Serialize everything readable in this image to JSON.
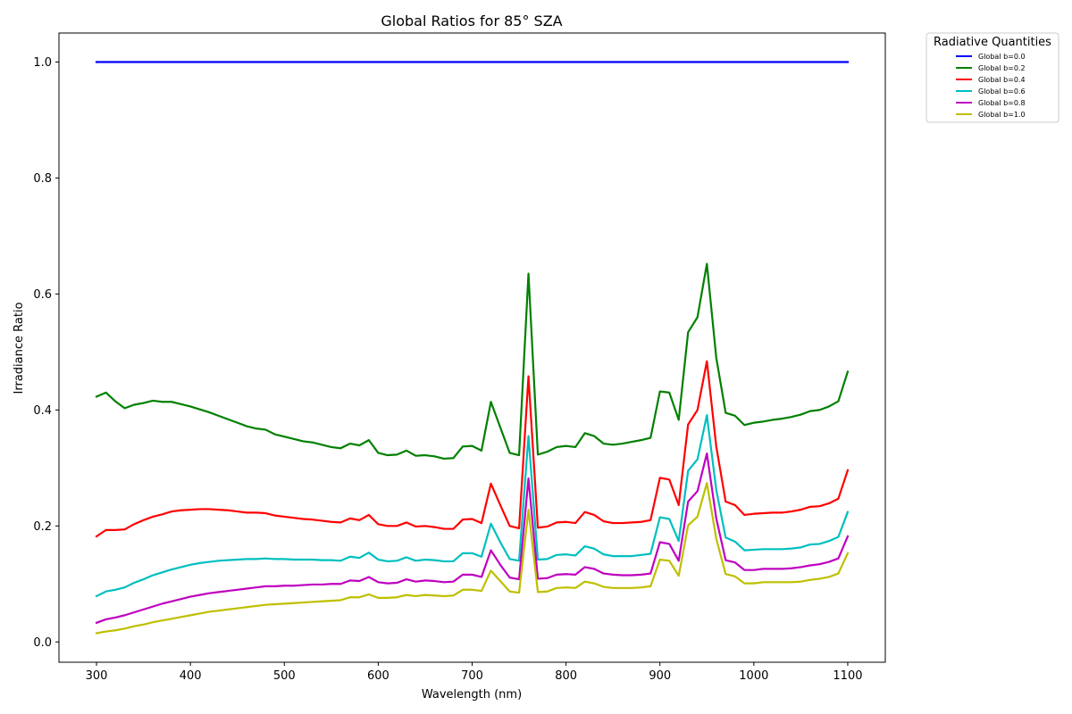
{
  "chart_data": {
    "type": "line",
    "title": "Global Ratios for 85° SZA",
    "xlabel": "Wavelength (nm)",
    "ylabel": "Irradiance Ratio",
    "xlim": [
      260,
      1140
    ],
    "ylim": [
      -0.035,
      1.05
    ],
    "xticks": [
      300,
      400,
      500,
      600,
      700,
      800,
      900,
      1000,
      1100
    ],
    "yticks": [
      0.0,
      0.2,
      0.4,
      0.6,
      0.8,
      1.0
    ],
    "grid": false,
    "legend": {
      "title": "Radiative Quantities",
      "placement": "outside-top-right"
    },
    "x": [
      300,
      310,
      320,
      330,
      340,
      350,
      360,
      370,
      380,
      390,
      400,
      410,
      420,
      430,
      440,
      450,
      460,
      470,
      480,
      490,
      500,
      510,
      520,
      530,
      540,
      550,
      560,
      570,
      580,
      590,
      600,
      610,
      620,
      630,
      640,
      650,
      660,
      670,
      680,
      690,
      700,
      710,
      720,
      730,
      740,
      750,
      760,
      770,
      780,
      790,
      800,
      810,
      820,
      830,
      840,
      850,
      860,
      870,
      880,
      890,
      900,
      910,
      920,
      930,
      940,
      950,
      960,
      970,
      980,
      990,
      1000,
      1010,
      1020,
      1030,
      1040,
      1050,
      1060,
      1070,
      1080,
      1090,
      1100
    ],
    "series": [
      {
        "name": "Global b=0.0",
        "color": "#0000ff",
        "values": [
          1.0,
          1.0,
          1.0,
          1.0,
          1.0,
          1.0,
          1.0,
          1.0,
          1.0,
          1.0,
          1.0,
          1.0,
          1.0,
          1.0,
          1.0,
          1.0,
          1.0,
          1.0,
          1.0,
          1.0,
          1.0,
          1.0,
          1.0,
          1.0,
          1.0,
          1.0,
          1.0,
          1.0,
          1.0,
          1.0,
          1.0,
          1.0,
          1.0,
          1.0,
          1.0,
          1.0,
          1.0,
          1.0,
          1.0,
          1.0,
          1.0,
          1.0,
          1.0,
          1.0,
          1.0,
          1.0,
          1.0,
          1.0,
          1.0,
          1.0,
          1.0,
          1.0,
          1.0,
          1.0,
          1.0,
          1.0,
          1.0,
          1.0,
          1.0,
          1.0,
          1.0,
          1.0,
          1.0,
          1.0,
          1.0,
          1.0,
          1.0,
          1.0,
          1.0,
          1.0,
          1.0,
          1.0,
          1.0,
          1.0,
          1.0,
          1.0,
          1.0,
          1.0,
          1.0,
          1.0,
          1.0
        ]
      },
      {
        "name": "Global b=0.2",
        "color": "#008000",
        "values": [
          0.423,
          0.43,
          0.415,
          0.403,
          0.409,
          0.412,
          0.416,
          0.414,
          0.414,
          0.41,
          0.406,
          0.401,
          0.396,
          0.39,
          0.384,
          0.378,
          0.372,
          0.368,
          0.366,
          0.358,
          0.354,
          0.35,
          0.346,
          0.344,
          0.34,
          0.336,
          0.334,
          0.342,
          0.339,
          0.348,
          0.326,
          0.322,
          0.323,
          0.33,
          0.321,
          0.322,
          0.32,
          0.316,
          0.317,
          0.337,
          0.338,
          0.33,
          0.414,
          0.37,
          0.326,
          0.322,
          0.635,
          0.323,
          0.328,
          0.336,
          0.338,
          0.336,
          0.36,
          0.355,
          0.342,
          0.34,
          0.342,
          0.345,
          0.348,
          0.352,
          0.432,
          0.43,
          0.383,
          0.534,
          0.56,
          0.652,
          0.49,
          0.395,
          0.39,
          0.374,
          0.378,
          0.38,
          0.383,
          0.385,
          0.388,
          0.392,
          0.398,
          0.4,
          0.406,
          0.415,
          0.466
        ]
      },
      {
        "name": "Global b=0.4",
        "color": "#ff0000",
        "values": [
          0.182,
          0.193,
          0.193,
          0.194,
          0.203,
          0.21,
          0.216,
          0.22,
          0.225,
          0.227,
          0.228,
          0.229,
          0.229,
          0.228,
          0.227,
          0.225,
          0.223,
          0.223,
          0.222,
          0.218,
          0.216,
          0.214,
          0.212,
          0.211,
          0.209,
          0.207,
          0.206,
          0.213,
          0.21,
          0.219,
          0.203,
          0.2,
          0.2,
          0.206,
          0.199,
          0.2,
          0.198,
          0.195,
          0.195,
          0.211,
          0.212,
          0.205,
          0.273,
          0.236,
          0.2,
          0.196,
          0.458,
          0.197,
          0.199,
          0.206,
          0.207,
          0.205,
          0.224,
          0.219,
          0.208,
          0.205,
          0.205,
          0.206,
          0.207,
          0.21,
          0.283,
          0.28,
          0.236,
          0.375,
          0.4,
          0.484,
          0.337,
          0.242,
          0.236,
          0.219,
          0.221,
          0.222,
          0.223,
          0.223,
          0.225,
          0.228,
          0.233,
          0.234,
          0.239,
          0.247,
          0.296
        ]
      },
      {
        "name": "Global b=0.6",
        "color": "#00bfbf",
        "values": [
          0.079,
          0.087,
          0.09,
          0.094,
          0.102,
          0.108,
          0.115,
          0.12,
          0.125,
          0.129,
          0.133,
          0.136,
          0.138,
          0.14,
          0.141,
          0.142,
          0.143,
          0.143,
          0.144,
          0.143,
          0.143,
          0.142,
          0.142,
          0.142,
          0.141,
          0.141,
          0.14,
          0.147,
          0.145,
          0.154,
          0.142,
          0.139,
          0.14,
          0.146,
          0.14,
          0.142,
          0.141,
          0.139,
          0.139,
          0.153,
          0.153,
          0.147,
          0.204,
          0.172,
          0.143,
          0.14,
          0.355,
          0.142,
          0.143,
          0.15,
          0.151,
          0.149,
          0.165,
          0.161,
          0.151,
          0.148,
          0.148,
          0.148,
          0.15,
          0.152,
          0.215,
          0.212,
          0.174,
          0.295,
          0.315,
          0.391,
          0.262,
          0.18,
          0.173,
          0.158,
          0.159,
          0.16,
          0.16,
          0.16,
          0.161,
          0.163,
          0.168,
          0.169,
          0.174,
          0.181,
          0.224
        ]
      },
      {
        "name": "Global b=0.8",
        "color": "#bf00bf",
        "values": [
          0.033,
          0.039,
          0.042,
          0.046,
          0.051,
          0.056,
          0.061,
          0.066,
          0.07,
          0.074,
          0.078,
          0.081,
          0.084,
          0.086,
          0.088,
          0.09,
          0.092,
          0.094,
          0.096,
          0.096,
          0.097,
          0.097,
          0.098,
          0.099,
          0.099,
          0.1,
          0.1,
          0.106,
          0.105,
          0.112,
          0.103,
          0.101,
          0.102,
          0.108,
          0.104,
          0.106,
          0.105,
          0.103,
          0.104,
          0.116,
          0.116,
          0.112,
          0.158,
          0.133,
          0.111,
          0.108,
          0.282,
          0.109,
          0.11,
          0.116,
          0.117,
          0.116,
          0.129,
          0.126,
          0.118,
          0.116,
          0.115,
          0.115,
          0.116,
          0.118,
          0.172,
          0.169,
          0.14,
          0.242,
          0.26,
          0.325,
          0.213,
          0.141,
          0.137,
          0.124,
          0.124,
          0.126,
          0.126,
          0.126,
          0.127,
          0.129,
          0.132,
          0.134,
          0.138,
          0.144,
          0.182
        ]
      },
      {
        "name": "Global b=1.0",
        "color": "#bfbf00",
        "values": [
          0.015,
          0.018,
          0.02,
          0.023,
          0.027,
          0.03,
          0.034,
          0.037,
          0.04,
          0.043,
          0.046,
          0.049,
          0.052,
          0.054,
          0.056,
          0.058,
          0.06,
          0.062,
          0.064,
          0.065,
          0.066,
          0.067,
          0.068,
          0.069,
          0.07,
          0.071,
          0.072,
          0.077,
          0.077,
          0.082,
          0.076,
          0.076,
          0.077,
          0.081,
          0.079,
          0.081,
          0.08,
          0.079,
          0.08,
          0.09,
          0.09,
          0.088,
          0.123,
          0.105,
          0.087,
          0.085,
          0.228,
          0.086,
          0.087,
          0.093,
          0.094,
          0.093,
          0.104,
          0.101,
          0.095,
          0.093,
          0.093,
          0.093,
          0.094,
          0.096,
          0.142,
          0.14,
          0.114,
          0.201,
          0.216,
          0.274,
          0.178,
          0.117,
          0.113,
          0.101,
          0.101,
          0.103,
          0.103,
          0.103,
          0.103,
          0.104,
          0.107,
          0.109,
          0.112,
          0.118,
          0.153
        ]
      }
    ]
  }
}
